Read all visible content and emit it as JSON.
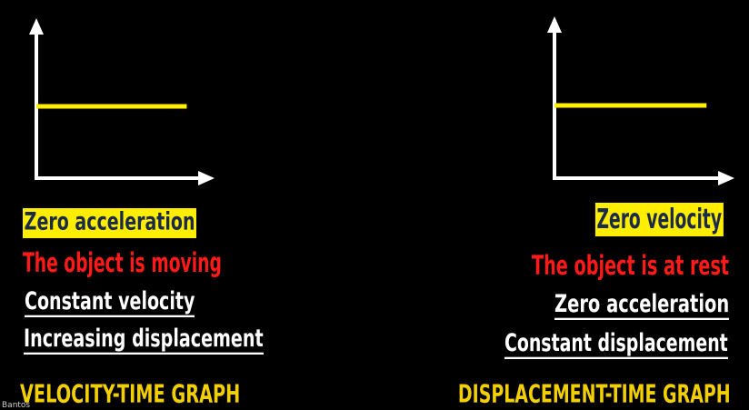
{
  "left_panel": {
    "highlight_label": "Zero acceleration",
    "state_label": "The object is moving",
    "fact_1": "Constant velocity",
    "fact_2": "Increasing displacement",
    "graph_title": "VELOCITY-TIME GRAPH"
  },
  "right_panel": {
    "highlight_label": "Zero velocity",
    "state_label": "The object is at rest",
    "fact_1": "Zero acceleration",
    "fact_2": "Constant displacement",
    "graph_title": "DISPLACEMENT-TIME GRAPH"
  },
  "corner_text": "Bantos",
  "colors": {
    "background": "#000000",
    "axis": "#ffffff",
    "plot_line": "#ffee00",
    "highlight_bg": "#ffee00",
    "highlight_text": "#1c2a4a",
    "state_text": "#ff1a1a",
    "fact_text": "#ffffff",
    "title_text": "#f2cf00"
  },
  "chart_data": [
    {
      "type": "line",
      "shape": "horizontal",
      "x": [
        0,
        1
      ],
      "y": [
        0.5,
        0.5
      ],
      "xlim": [
        0,
        1.1
      ],
      "ylim": [
        0,
        1.0
      ]
    },
    {
      "type": "line",
      "shape": "horizontal",
      "x": [
        0,
        1
      ],
      "y": [
        0.5,
        0.5
      ],
      "xlim": [
        0,
        1.1
      ],
      "ylim": [
        0,
        1.0
      ]
    }
  ]
}
